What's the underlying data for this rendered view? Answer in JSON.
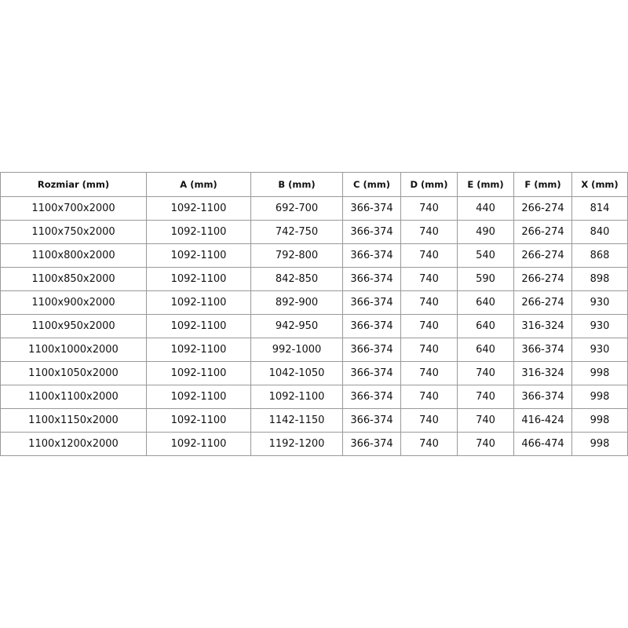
{
  "table": {
    "header": [
      "Rozmiar (mm)",
      "A (mm)",
      "B (mm)",
      "C (mm)",
      "D (mm)",
      "E (mm)",
      "F (mm)",
      "X (mm)"
    ],
    "rows": [
      [
        "1100x700x2000",
        "1092-1100",
        "692-700",
        "366-374",
        "740",
        "440",
        "266-274",
        "814"
      ],
      [
        "1100x750x2000",
        "1092-1100",
        "742-750",
        "366-374",
        "740",
        "490",
        "266-274",
        "840"
      ],
      [
        "1100x800x2000",
        "1092-1100",
        "792-800",
        "366-374",
        "740",
        "540",
        "266-274",
        "868"
      ],
      [
        "1100x850x2000",
        "1092-1100",
        "842-850",
        "366-374",
        "740",
        "590",
        "266-274",
        "898"
      ],
      [
        "1100x900x2000",
        "1092-1100",
        "892-900",
        "366-374",
        "740",
        "640",
        "266-274",
        "930"
      ],
      [
        "1100x950x2000",
        "1092-1100",
        "942-950",
        "366-374",
        "740",
        "640",
        "316-324",
        "930"
      ],
      [
        "1100x1000x2000",
        "1092-1100",
        "992-1000",
        "366-374",
        "740",
        "640",
        "366-374",
        "930"
      ],
      [
        "1100x1050x2000",
        "1092-1100",
        "1042-1050",
        "366-374",
        "740",
        "740",
        "316-324",
        "998"
      ],
      [
        "1100x1100x2000",
        "1092-1100",
        "1092-1100",
        "366-374",
        "740",
        "740",
        "366-374",
        "998"
      ],
      [
        "1100x1150x2000",
        "1092-1100",
        "1142-1150",
        "366-374",
        "740",
        "740",
        "416-424",
        "998"
      ],
      [
        "1100x1200x2000",
        "1092-1100",
        "1192-1200",
        "366-374",
        "740",
        "740",
        "466-474",
        "998"
      ]
    ]
  }
}
